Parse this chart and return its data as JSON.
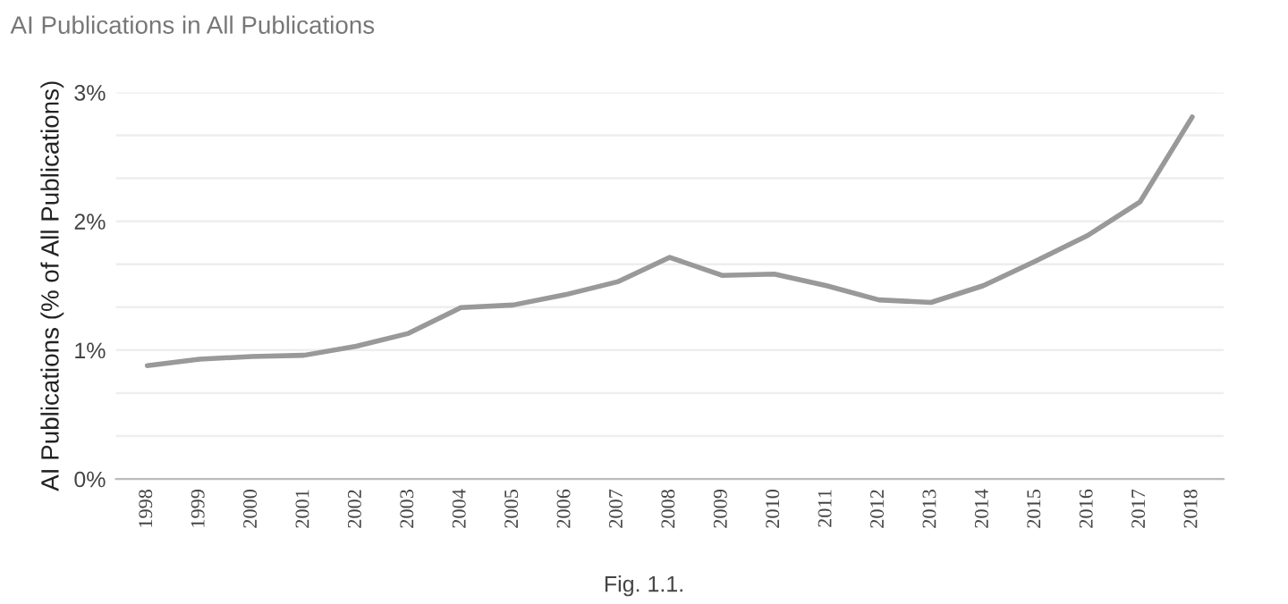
{
  "chart_data": {
    "type": "line",
    "title": "AI Publications in All Publications",
    "ylabel": "AI Publications (% of All Publications)",
    "categories": [
      "1998",
      "1999",
      "2000",
      "2001",
      "2002",
      "2003",
      "2004",
      "2005",
      "2006",
      "2007",
      "2008",
      "2009",
      "2010",
      "2011",
      "2012",
      "2013",
      "2014",
      "2015",
      "2016",
      "2017",
      "2018"
    ],
    "series": [
      {
        "color": "#999999",
        "values": [
          0.88,
          0.93,
          0.95,
          0.96,
          1.03,
          1.13,
          1.33,
          1.35,
          1.43,
          1.53,
          1.72,
          1.58,
          1.59,
          1.5,
          1.39,
          1.37,
          1.5,
          1.69,
          1.89,
          2.15,
          2.81
        ]
      }
    ],
    "ylim": [
      0,
      3
    ],
    "yticks": [
      {
        "value": 0,
        "label": "0%"
      },
      {
        "value": 0.333,
        "label": null
      },
      {
        "value": 0.667,
        "label": null
      },
      {
        "value": 1,
        "label": "1%"
      },
      {
        "value": 1.333,
        "label": null
      },
      {
        "value": 1.667,
        "label": null
      },
      {
        "value": 2,
        "label": "2%"
      },
      {
        "value": 2.333,
        "label": null
      },
      {
        "value": 2.667,
        "label": null
      },
      {
        "value": 3,
        "label": "3%"
      }
    ],
    "grid": "y",
    "marker": "none",
    "line_style": "solid",
    "annotations": [
      "Fig. 1.1."
    ]
  }
}
